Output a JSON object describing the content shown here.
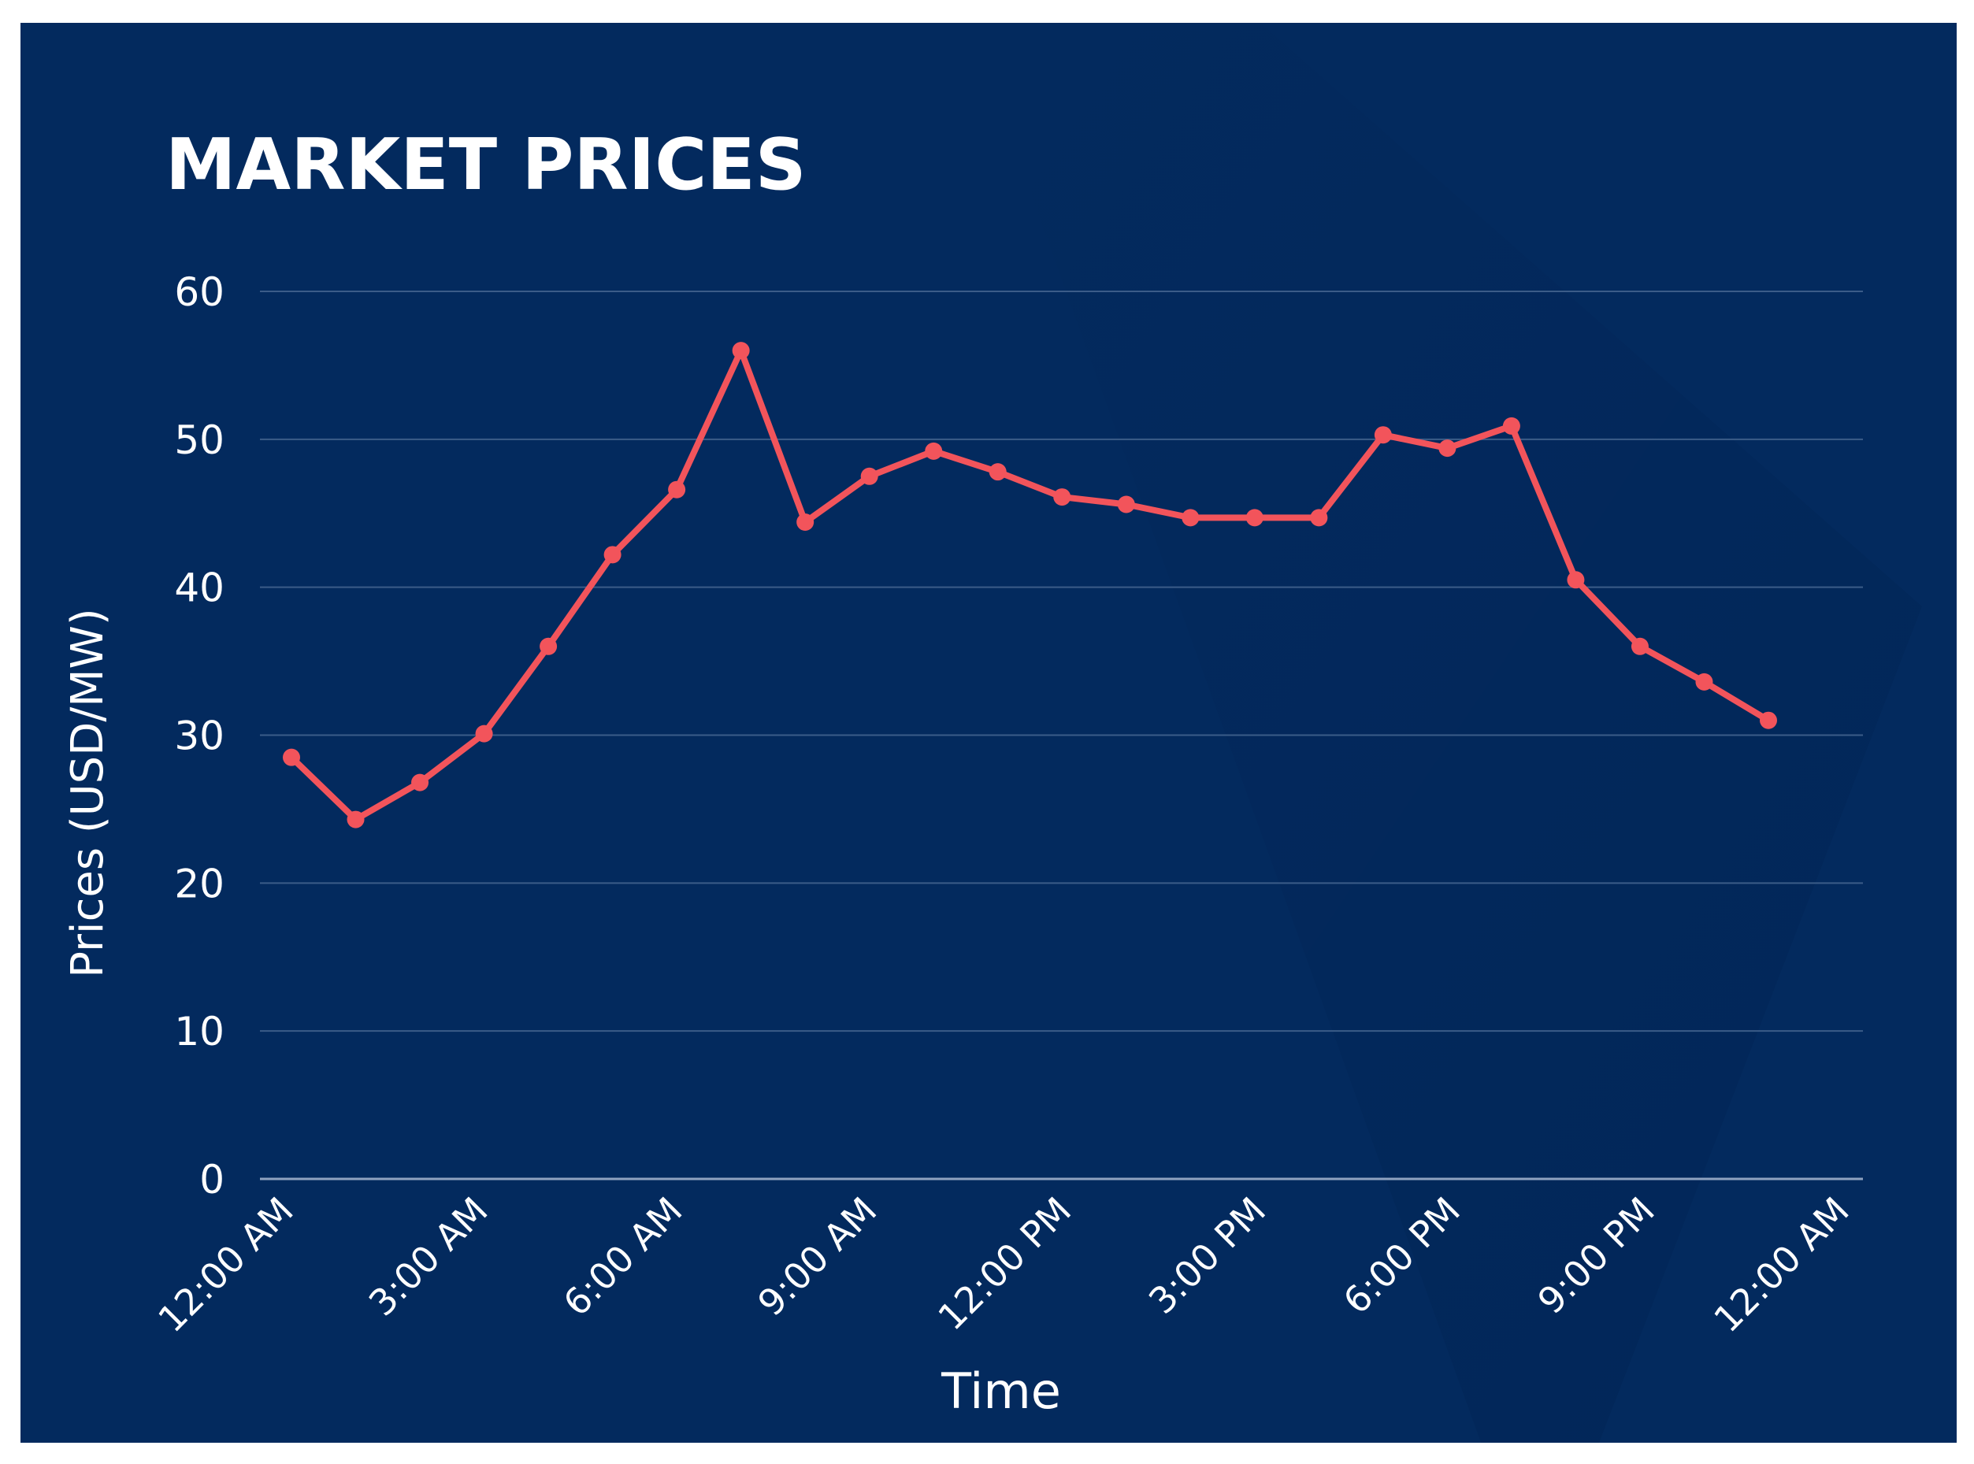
{
  "chart_data": {
    "type": "line",
    "title": "MARKET PRICES",
    "xlabel": "Time",
    "ylabel": "Prices (USD/MW)",
    "ylim": [
      0,
      60
    ],
    "yticks": [
      0,
      10,
      20,
      30,
      40,
      50,
      60
    ],
    "xtick_labels": [
      "12:00 AM",
      "3:00 AM",
      "6:00 AM",
      "9:00 AM",
      "12:00 PM",
      "3:00 PM",
      "6:00 PM",
      "9:00 PM",
      "12:00 AM"
    ],
    "grid": true,
    "x": [
      "12:00 AM",
      "1:00 AM",
      "2:00 AM",
      "3:00 AM",
      "4:00 AM",
      "5:00 AM",
      "6:00 AM",
      "7:00 AM",
      "8:00 AM",
      "9:00 AM",
      "10:00 AM",
      "11:00 AM",
      "12:00 PM",
      "1:00 PM",
      "2:00 PM",
      "3:00 PM",
      "4:00 PM",
      "5:00 PM",
      "6:00 PM",
      "7:00 PM",
      "8:00 PM",
      "9:00 PM",
      "10:00 PM",
      "11:00 PM"
    ],
    "series": [
      {
        "values": [
          28.5,
          24.3,
          26.8,
          30.1,
          36.0,
          42.2,
          46.6,
          56.0,
          44.4,
          47.5,
          49.2,
          47.8,
          46.1,
          45.6,
          44.7,
          44.7,
          44.7,
          50.3,
          49.4,
          50.9,
          40.5,
          36.0,
          33.6,
          31.0
        ]
      }
    ],
    "colors": {
      "background": "#032a5e",
      "line": "#f2545b",
      "grid": "#3b5c88",
      "text": "#ffffff"
    }
  }
}
